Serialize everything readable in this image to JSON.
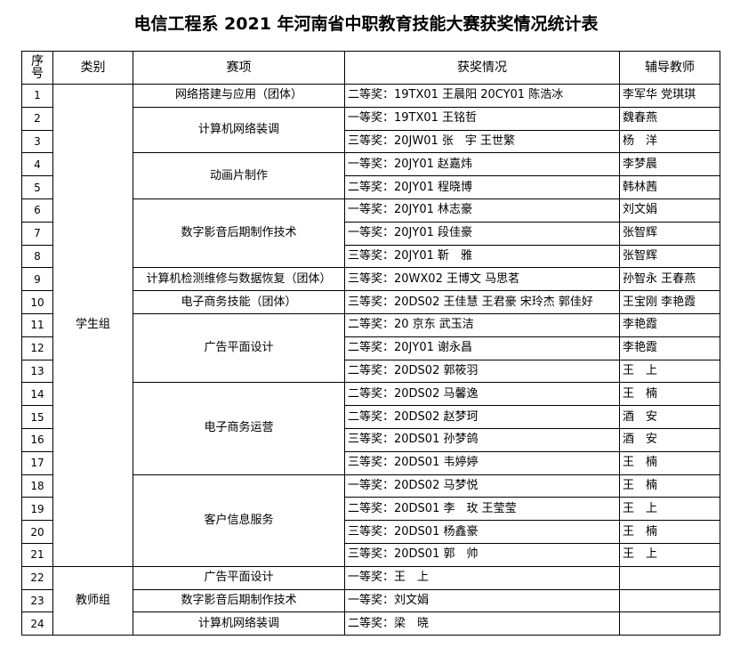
{
  "title": "电信工程系 2021 年河南省中职教育技能大赛获奖情况统计表",
  "headers": {
    "seq_line1": "序",
    "seq_line2": "号",
    "category": "类别",
    "event": "赛项",
    "award": "获奖情况",
    "teacher": "辅导教师"
  },
  "categories": [
    {
      "label": "学生组",
      "events": [
        {
          "name": "网络搭建与应用（团体）",
          "rows": [
            {
              "seq": "1",
              "award": "二等奖：19TX01 王晨阳 20CY01 陈浩冰",
              "teacher": "李军华 党琪琪"
            }
          ]
        },
        {
          "name": "计算机网络装调",
          "rows": [
            {
              "seq": "2",
              "award": "一等奖：19TX01 王铭哲",
              "teacher": "魏春燕"
            },
            {
              "seq": "3",
              "award": "三等奖：20JW01 张　宇 王世繁",
              "teacher": "杨　洋"
            }
          ]
        },
        {
          "name": "动画片制作",
          "rows": [
            {
              "seq": "4",
              "award": "一等奖：20JY01 赵嘉炜",
              "teacher": "李梦晨"
            },
            {
              "seq": "5",
              "award": "二等奖：20JY01 程晓博",
              "teacher": "韩林茜"
            }
          ]
        },
        {
          "name": "数字影音后期制作技术",
          "rows": [
            {
              "seq": "6",
              "award": "一等奖：20JY01 林志豪",
              "teacher": "刘文娟"
            },
            {
              "seq": "7",
              "award": "一等奖：20JY01 段佳豪",
              "teacher": "张智辉"
            },
            {
              "seq": "8",
              "award": "三等奖：20JY01 靳　雅",
              "teacher": "张智辉"
            }
          ]
        },
        {
          "name": "计算机检测维修与数据恢复（团体）",
          "rows": [
            {
              "seq": "9",
              "award": "三等奖：20WX02 王博文 马思茗",
              "teacher": "孙智永 王春燕"
            }
          ]
        },
        {
          "name": "电子商务技能（团体）",
          "rows": [
            {
              "seq": "10",
              "award": "三等奖：20DS02 王佳慧 王君豪 宋玲杰 郭佳好",
              "teacher": "王宝刚 李艳霞"
            }
          ]
        },
        {
          "name": "广告平面设计",
          "rows": [
            {
              "seq": "11",
              "award": "二等奖：20 京东 武玉洁",
              "teacher": "李艳霞"
            },
            {
              "seq": "12",
              "award": "二等奖：20JY01 谢永昌",
              "teacher": "李艳霞"
            },
            {
              "seq": "13",
              "award": "二等奖：20DS02 郭筱羽",
              "teacher": "王　上"
            }
          ]
        },
        {
          "name": "电子商务运营",
          "rows": [
            {
              "seq": "14",
              "award": "二等奖：20DS02 马馨逸",
              "teacher": "王　楠"
            },
            {
              "seq": "15",
              "award": "二等奖：20DS02 赵梦珂",
              "teacher": "酒　安"
            },
            {
              "seq": "16",
              "award": "三等奖：20DS01 孙梦鸽",
              "teacher": "酒　安"
            },
            {
              "seq": "17",
              "award": "三等奖：20DS01 韦婷婷",
              "teacher": "王　楠"
            }
          ]
        },
        {
          "name": "客户信息服务",
          "rows": [
            {
              "seq": "18",
              "award": "一等奖：20DS02 马梦悦",
              "teacher": "王　楠"
            },
            {
              "seq": "19",
              "award": "二等奖：20DS01 李　玫 王莹莹",
              "teacher": "王　上"
            },
            {
              "seq": "20",
              "award": "三等奖：20DS01 杨鑫豪",
              "teacher": "王　楠"
            },
            {
              "seq": "21",
              "award": "三等奖：20DS01 郭　帅",
              "teacher": "王　上"
            }
          ]
        }
      ]
    },
    {
      "label": "教师组",
      "events": [
        {
          "name": "广告平面设计",
          "rows": [
            {
              "seq": "22",
              "award": "一等奖：王　上",
              "teacher": ""
            }
          ]
        },
        {
          "name": "数字影音后期制作技术",
          "rows": [
            {
              "seq": "23",
              "award": "一等奖：刘文娟",
              "teacher": ""
            }
          ]
        },
        {
          "name": "计算机网络装调",
          "rows": [
            {
              "seq": "24",
              "award": "二等奖：梁　晓",
              "teacher": ""
            }
          ]
        }
      ]
    }
  ]
}
